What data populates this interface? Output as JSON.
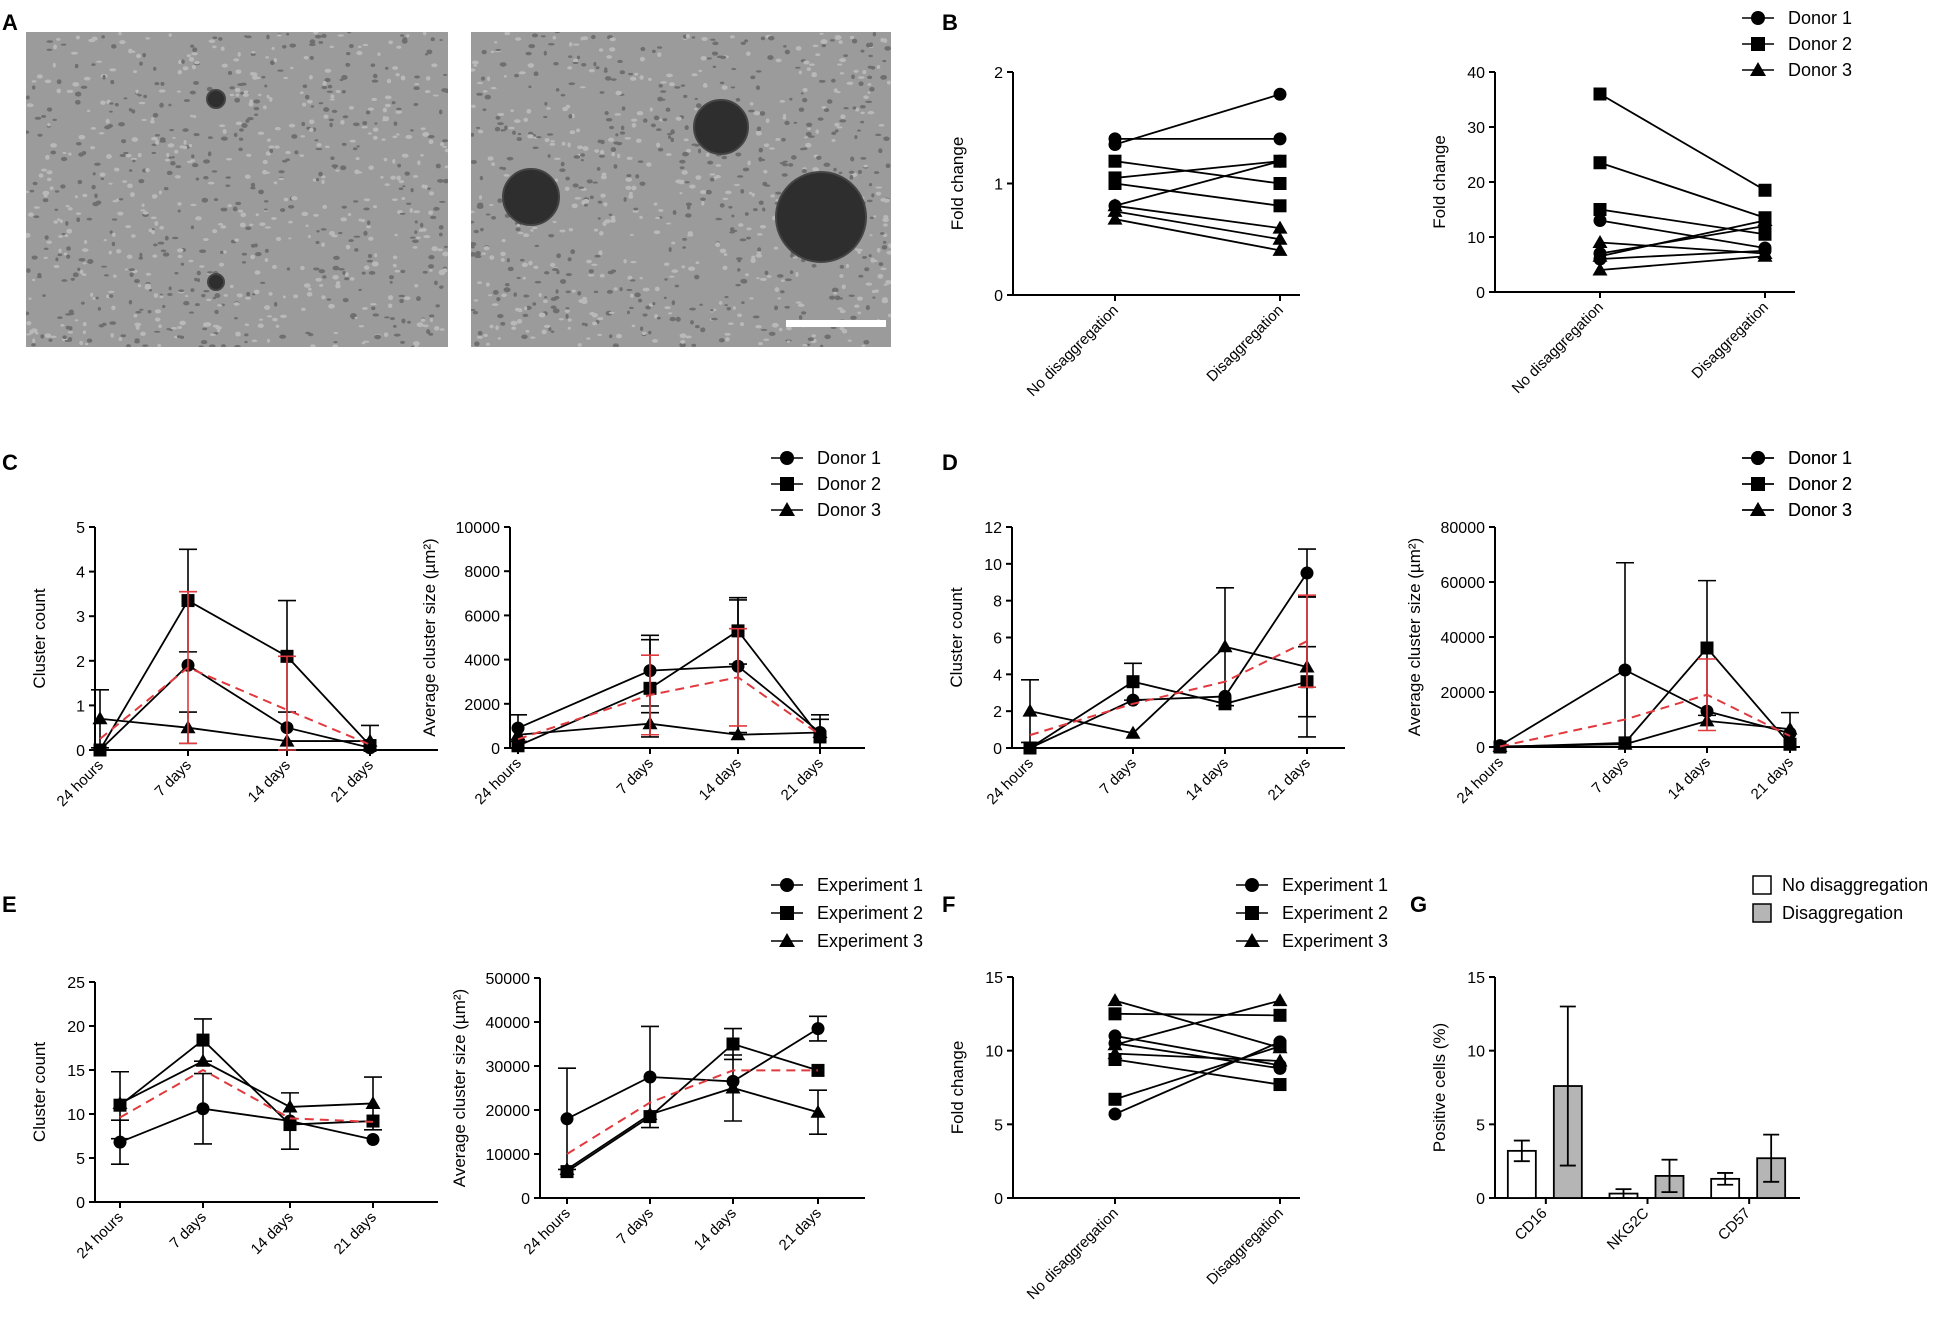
{
  "panels": {
    "A": "A",
    "B": "B",
    "C": "C",
    "D": "D",
    "E": "E",
    "F": "F",
    "G": "G"
  },
  "colors": {
    "line": "#000000",
    "mean": "#e0393e",
    "bar_open": "#ffffff",
    "bar_grey": "#b5b5b5",
    "micro_bg": "#9b9b9b"
  },
  "legends": {
    "donors": [
      "Donor 1",
      "Donor 2",
      "Donor 3"
    ],
    "experiments": [
      "Experiment 1",
      "Experiment 2",
      "Experiment 3"
    ],
    "groups": [
      "No disaggregation",
      "Disaggregation"
    ]
  },
  "chart_data": [
    {
      "id": "B1",
      "type": "line",
      "ylabel": "Fold change",
      "ylim": [
        0,
        2
      ],
      "yticks": [
        "0",
        "1",
        "2"
      ],
      "categories": [
        "No disaggregation",
        "Disaggregation"
      ],
      "series": [
        {
          "marker": "circle",
          "values": [
            1.4,
            1.4
          ]
        },
        {
          "marker": "circle",
          "values": [
            1.35,
            1.8
          ]
        },
        {
          "marker": "circle",
          "values": [
            0.8,
            1.2
          ]
        },
        {
          "marker": "square",
          "values": [
            1.2,
            1.0
          ]
        },
        {
          "marker": "square",
          "values": [
            1.05,
            1.2
          ]
        },
        {
          "marker": "square",
          "values": [
            1.0,
            0.8
          ]
        },
        {
          "marker": "triangle",
          "values": [
            0.8,
            0.6
          ]
        },
        {
          "marker": "triangle",
          "values": [
            0.75,
            0.5
          ]
        },
        {
          "marker": "triangle",
          "values": [
            0.68,
            0.4
          ]
        }
      ]
    },
    {
      "id": "B2",
      "type": "line",
      "ylabel": "Fold change",
      "ylim": [
        0,
        40
      ],
      "yticks": [
        "0",
        "10",
        "20",
        "30",
        "40"
      ],
      "categories": [
        "No disaggregation",
        "Disaggregation"
      ],
      "series": [
        {
          "marker": "circle",
          "values": [
            13,
            8
          ]
        },
        {
          "marker": "circle",
          "values": [
            7,
            12
          ]
        },
        {
          "marker": "circle",
          "values": [
            6,
            7.5
          ]
        },
        {
          "marker": "square",
          "values": [
            36,
            18.5
          ]
        },
        {
          "marker": "square",
          "values": [
            23.5,
            13.5
          ]
        },
        {
          "marker": "square",
          "values": [
            15,
            10.5
          ]
        },
        {
          "marker": "triangle",
          "values": [
            9,
            7
          ]
        },
        {
          "marker": "triangle",
          "values": [
            6.5,
            13
          ]
        },
        {
          "marker": "triangle",
          "values": [
            4,
            6.5
          ]
        }
      ]
    },
    {
      "id": "C1",
      "type": "line",
      "ylabel": "Cluster count",
      "ylim": [
        0,
        5
      ],
      "yticks": [
        "0",
        "1",
        "2",
        "3",
        "4",
        "5"
      ],
      "categories": [
        "24 hours",
        "7 days",
        "14 days",
        "21 days"
      ],
      "series": [
        {
          "name": "Donor 1",
          "marker": "circle",
          "values": [
            0,
            1.9,
            0.5,
            0.05
          ],
          "err": [
            0,
            0,
            0,
            0
          ]
        },
        {
          "name": "Donor 2",
          "marker": "square",
          "values": [
            0,
            3.35,
            2.1,
            0.1
          ],
          "err": [
            0,
            1.15,
            1.25,
            0.45
          ]
        },
        {
          "name": "Donor 3",
          "marker": "triangle",
          "values": [
            0.7,
            0.5,
            0.2,
            0.2
          ],
          "err": [
            0.65,
            0.35,
            0,
            0
          ]
        },
        {
          "name": "mean",
          "dashed": true,
          "values": [
            0.25,
            1.85,
            0.9,
            0.12
          ],
          "err": [
            0,
            1.7,
            1.2,
            0
          ]
        }
      ]
    },
    {
      "id": "C2",
      "type": "line",
      "ylabel": "Average cluster size (µm²)",
      "ylim": [
        0,
        10000
      ],
      "yticks": [
        "0",
        "2000",
        "4000",
        "6000",
        "8000",
        "10000"
      ],
      "categories": [
        "24 hours",
        "7 days",
        "14 days",
        "21 days"
      ],
      "series": [
        {
          "name": "Donor 1",
          "marker": "circle",
          "values": [
            900,
            3500,
            3700,
            700
          ],
          "err": [
            600,
            1600,
            3000,
            800
          ]
        },
        {
          "name": "Donor 2",
          "marker": "square",
          "values": [
            100,
            2700,
            5300,
            500
          ],
          "err": [
            0,
            2200,
            1500,
            800
          ]
        },
        {
          "name": "Donor 3",
          "marker": "triangle",
          "values": [
            600,
            1100,
            600,
            700
          ],
          "err": [
            0,
            500,
            0,
            0
          ]
        },
        {
          "name": "mean",
          "dashed": true,
          "values": [
            400,
            2400,
            3200,
            600
          ],
          "err": [
            0,
            1800,
            2200,
            0
          ]
        }
      ]
    },
    {
      "id": "D1",
      "type": "line",
      "ylabel": "Cluster count",
      "ylim": [
        0,
        12
      ],
      "yticks": [
        "0",
        "2",
        "4",
        "6",
        "8",
        "10",
        "12"
      ],
      "categories": [
        "24 hours",
        "7 days",
        "14 days",
        "21 days"
      ],
      "series": [
        {
          "name": "Donor 1",
          "marker": "circle",
          "values": [
            0,
            2.6,
            2.8,
            9.5
          ],
          "err": [
            0,
            0,
            0,
            1.3
          ]
        },
        {
          "name": "Donor 2",
          "marker": "square",
          "values": [
            0,
            3.6,
            2.4,
            3.6
          ],
          "err": [
            0,
            1,
            0,
            1.9
          ]
        },
        {
          "name": "Donor 3",
          "marker": "triangle",
          "values": [
            2.0,
            0.8,
            5.5,
            4.4
          ],
          "err": [
            1.7,
            0,
            3.2,
            3.8
          ]
        },
        {
          "name": "mean",
          "dashed": true,
          "values": [
            0.7,
            2.4,
            3.6,
            5.8
          ],
          "err": [
            0,
            0,
            0,
            2.5
          ]
        }
      ]
    },
    {
      "id": "D2",
      "type": "line",
      "ylabel": "Average cluster size (µm²)",
      "ylim": [
        0,
        80000
      ],
      "yticks": [
        "0",
        "20000",
        "40000",
        "60000",
        "80000"
      ],
      "categories": [
        "24 hours",
        "7 days",
        "14 days",
        "21 days"
      ],
      "series": [
        {
          "name": "Donor 1",
          "marker": "circle",
          "values": [
            500,
            28000,
            13000,
            5000
          ],
          "err": [
            0,
            39000,
            0,
            7500
          ]
        },
        {
          "name": "Donor 2",
          "marker": "square",
          "values": [
            0,
            1500,
            36000,
            1000
          ],
          "err": [
            0,
            0,
            24500,
            0
          ]
        },
        {
          "name": "Donor 3",
          "marker": "triangle",
          "values": [
            200,
            1000,
            9500,
            6500
          ],
          "err": [
            0,
            0,
            0,
            0
          ]
        },
        {
          "name": "mean",
          "dashed": true,
          "values": [
            200,
            10000,
            19000,
            4000
          ],
          "err": [
            0,
            0,
            13000,
            0
          ]
        }
      ]
    },
    {
      "id": "E1",
      "type": "line",
      "ylabel": "Cluster count",
      "ylim": [
        0,
        25
      ],
      "yticks": [
        "0",
        "5",
        "10",
        "15",
        "20",
        "25"
      ],
      "categories": [
        "24 hours",
        "7 days",
        "14 days",
        "21 days"
      ],
      "series": [
        {
          "name": "Experiment 1",
          "marker": "circle",
          "values": [
            6.8,
            10.6,
            9.2,
            7.1
          ],
          "err": [
            2.5,
            4,
            3.2,
            0
          ]
        },
        {
          "name": "Experiment 2",
          "marker": "square",
          "values": [
            11,
            18.4,
            8.8,
            9.2
          ],
          "err": [
            3.8,
            2.4,
            0,
            0
          ]
        },
        {
          "name": "Experiment 3",
          "marker": "triangle",
          "values": [
            11.2,
            16,
            10.8,
            11.2
          ],
          "err": [
            0,
            0,
            0,
            3
          ]
        },
        {
          "name": "mean",
          "dashed": true,
          "values": [
            9.6,
            15,
            9.5,
            9.1
          ],
          "err": [
            0,
            0,
            0,
            0
          ]
        }
      ]
    },
    {
      "id": "E2",
      "type": "line",
      "ylabel": "Average cluster size (µm²)",
      "ylim": [
        0,
        50000
      ],
      "yticks": [
        "0",
        "10000",
        "20000",
        "30000",
        "40000",
        "50000"
      ],
      "categories": [
        "24 hours",
        "7 days",
        "14 days",
        "21 days"
      ],
      "series": [
        {
          "name": "Experiment 1",
          "marker": "circle",
          "values": [
            18000,
            27500,
            26500,
            38500
          ],
          "err": [
            11500,
            11500,
            0,
            2800
          ]
        },
        {
          "name": "Experiment 2",
          "marker": "square",
          "values": [
            6000,
            18500,
            35000,
            29000
          ],
          "err": [
            0,
            0,
            3500,
            0
          ]
        },
        {
          "name": "Experiment 3",
          "marker": "triangle",
          "values": [
            6500,
            19000,
            25000,
            19500
          ],
          "err": [
            0,
            0,
            7500,
            5000
          ]
        },
        {
          "name": "mean",
          "dashed": true,
          "values": [
            10000,
            21700,
            29000,
            29000
          ],
          "err": [
            0,
            0,
            0,
            0
          ]
        }
      ]
    },
    {
      "id": "F",
      "type": "line",
      "ylabel": "Fold change",
      "ylim": [
        0,
        15
      ],
      "yticks": [
        "0",
        "5",
        "10",
        "15"
      ],
      "categories": [
        "No disaggregation",
        "Disaggregation"
      ],
      "series": [
        {
          "marker": "circle",
          "values": [
            11,
            9
          ]
        },
        {
          "marker": "circle",
          "values": [
            10.5,
            8.8
          ]
        },
        {
          "marker": "circle",
          "values": [
            5.7,
            10.6
          ]
        },
        {
          "marker": "square",
          "values": [
            12.5,
            12.4
          ]
        },
        {
          "marker": "square",
          "values": [
            9.4,
            7.7
          ]
        },
        {
          "marker": "square",
          "values": [
            6.7,
            10.3
          ]
        },
        {
          "marker": "triangle",
          "values": [
            13.4,
            10.2
          ]
        },
        {
          "marker": "triangle",
          "values": [
            10.4,
            13.4
          ]
        },
        {
          "marker": "triangle",
          "values": [
            9.8,
            9.3
          ]
        }
      ]
    },
    {
      "id": "G",
      "type": "bar",
      "ylabel": "Positive cells (%)",
      "ylim": [
        0,
        15
      ],
      "yticks": [
        "0",
        "5",
        "10",
        "15"
      ],
      "categories": [
        "CD16",
        "NKG2C",
        "CD57"
      ],
      "series": [
        {
          "name": "No disaggregation",
          "values": [
            3.2,
            0.3,
            1.3
          ],
          "err": [
            0.7,
            0.3,
            0.4
          ]
        },
        {
          "name": "Disaggregation",
          "values": [
            7.6,
            1.5,
            2.7
          ],
          "err": [
            5.4,
            1.1,
            1.6
          ]
        }
      ]
    }
  ]
}
